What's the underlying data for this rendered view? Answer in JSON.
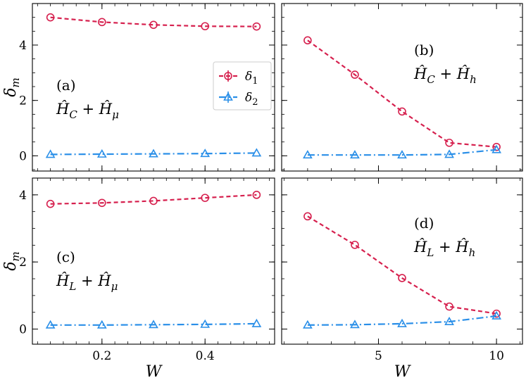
{
  "colors": {
    "delta1": "#d6204e",
    "delta2": "#2a8fe8",
    "axis": "#000000"
  },
  "legend": {
    "entries": [
      "δ1",
      "δ2"
    ],
    "placement": "top-right of panel (a)"
  },
  "y_axis_label": "δm",
  "x_axis_label": "W",
  "chart_data": [
    {
      "type": "line",
      "panel": "a",
      "label": "(a)",
      "formula": "Ĥ_C + Ĥ_μ",
      "x": [
        0.1,
        0.2,
        0.3,
        0.4,
        0.5
      ],
      "xlim": [
        0.065,
        0.535
      ],
      "ylim": [
        -0.55,
        5.5
      ],
      "xticks": [
        0.2,
        0.4
      ],
      "yticks": [
        0,
        2,
        4
      ],
      "series": [
        {
          "name": "δ1",
          "values": [
            5.0,
            4.83,
            4.73,
            4.68,
            4.67
          ]
        },
        {
          "name": "δ2",
          "values": [
            0.05,
            0.06,
            0.07,
            0.08,
            0.1
          ]
        }
      ]
    },
    {
      "type": "line",
      "panel": "b",
      "label": "(b)",
      "formula": "Ĥ_C + Ĥ_h",
      "x": [
        2,
        4,
        6,
        8,
        10
      ],
      "xlim": [
        0.9,
        11.1
      ],
      "ylim": [
        -0.55,
        5.5
      ],
      "xticks": [
        5,
        10
      ],
      "yticks": [
        0,
        2,
        4
      ],
      "series": [
        {
          "name": "δ1",
          "values": [
            4.17,
            2.93,
            1.6,
            0.47,
            0.32
          ]
        },
        {
          "name": "δ2",
          "values": [
            0.03,
            0.03,
            0.03,
            0.05,
            0.22
          ]
        }
      ]
    },
    {
      "type": "line",
      "panel": "c",
      "label": "(c)",
      "formula": "Ĥ_L + Ĥ_μ",
      "x": [
        0.1,
        0.2,
        0.3,
        0.4,
        0.5
      ],
      "xlim": [
        0.065,
        0.535
      ],
      "ylim": [
        -0.45,
        4.5
      ],
      "xticks": [
        0.2,
        0.4
      ],
      "yticks": [
        0,
        2,
        4
      ],
      "series": [
        {
          "name": "δ1",
          "values": [
            3.73,
            3.76,
            3.82,
            3.91,
            4.0
          ]
        },
        {
          "name": "δ2",
          "values": [
            0.12,
            0.12,
            0.13,
            0.14,
            0.16
          ]
        }
      ]
    },
    {
      "type": "line",
      "panel": "d",
      "label": "(d)",
      "formula": "Ĥ_L + Ĥ_h",
      "x": [
        2,
        4,
        6,
        8,
        10
      ],
      "xlim": [
        0.9,
        11.1
      ],
      "ylim": [
        -0.45,
        4.5
      ],
      "xticks": [
        5,
        10
      ],
      "yticks": [
        0,
        2,
        4
      ],
      "series": [
        {
          "name": "δ1",
          "values": [
            3.36,
            2.51,
            1.52,
            0.67,
            0.46
          ]
        },
        {
          "name": "δ2",
          "values": [
            0.12,
            0.13,
            0.16,
            0.22,
            0.39
          ]
        }
      ]
    }
  ]
}
